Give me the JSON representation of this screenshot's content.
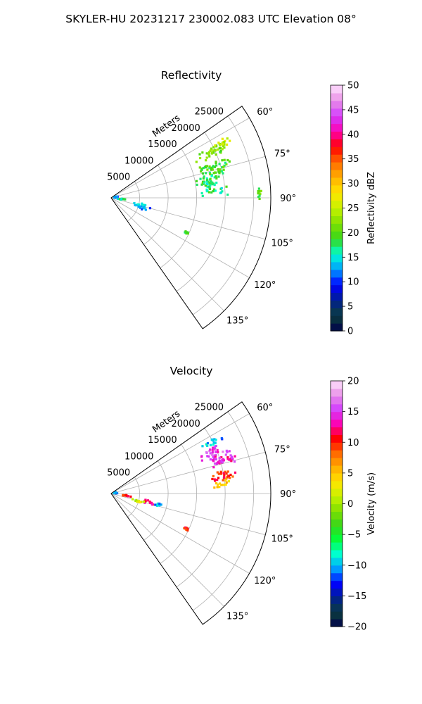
{
  "suptitle": "SKYLER-HU  20231217  230002.083 UTC Elevation 08°",
  "chart_data": [
    {
      "type": "heatmap",
      "projection": "polar-sector",
      "title": "Reflectivity",
      "range_label": "Meters",
      "range_ticks": [
        5000,
        10000,
        15000,
        20000,
        25000
      ],
      "range_max": 28000,
      "azimuth_range": [
        55,
        145
      ],
      "azimuth_ticks": [
        "60°",
        "75°",
        "90°",
        "105°",
        "120°",
        "135°"
      ],
      "colorbar": {
        "label": "Reflectivity dBZ",
        "min": 0,
        "max": 50,
        "ticks": [
          "0",
          "5",
          "10",
          "15",
          "20",
          "25",
          "30",
          "35",
          "40",
          "45",
          "50"
        ],
        "stops": [
          "#00004a",
          "#0b3d3d",
          "#00208f",
          "#0000ff",
          "#009cff",
          "#00ffd5",
          "#37d61a",
          "#7fe000",
          "#c6f200",
          "#ffe600",
          "#ffb000",
          "#ff6a00",
          "#ff0000",
          "#ff00b0",
          "#d23cff",
          "#e98fe6",
          "#ffe3ff"
        ]
      },
      "echoes": [
        {
          "az": 66,
          "r": 19500,
          "daz": 4.5,
          "dr": 3500,
          "value": 21
        },
        {
          "az": 64,
          "r": 22000,
          "daz": 3,
          "dr": 2000,
          "value": 25
        },
        {
          "az": 74,
          "r": 19000,
          "daz": 6,
          "dr": 4000,
          "value": 19
        },
        {
          "az": 80,
          "r": 17500,
          "daz": 5,
          "dr": 3500,
          "value": 18
        },
        {
          "az": 85,
          "r": 18000,
          "daz": 4,
          "dr": 3000,
          "value": 17
        },
        {
          "az": 103,
          "r": 5000,
          "daz": 6,
          "dr": 2200,
          "value": 14
        },
        {
          "az": 108,
          "r": 5500,
          "daz": 5,
          "dr": 1800,
          "value": 13
        },
        {
          "az": 97,
          "r": 2000,
          "daz": 4,
          "dr": 1300,
          "value": 17
        },
        {
          "az": 80,
          "r": 800,
          "daz": 14,
          "dr": 500,
          "value": 12
        },
        {
          "az": 88,
          "r": 26000,
          "daz": 3,
          "dr": 500,
          "value": 20
        },
        {
          "az": 115,
          "r": 14500,
          "daz": 1,
          "dr": 600,
          "value": 18
        }
      ]
    },
    {
      "type": "heatmap",
      "projection": "polar-sector",
      "title": "Velocity",
      "range_label": "Meters",
      "range_ticks": [
        5000,
        10000,
        15000,
        20000,
        25000
      ],
      "range_max": 28000,
      "azimuth_range": [
        55,
        145
      ],
      "azimuth_ticks": [
        "60°",
        "75°",
        "90°",
        "105°",
        "120°",
        "135°"
      ],
      "colorbar": {
        "label": "Velocity (m/s)",
        "min": -20,
        "max": 20,
        "ticks": [
          "−20",
          "−15",
          "−10",
          "−5",
          "0",
          "5",
          "10",
          "15",
          "20"
        ],
        "stops": [
          "#00004a",
          "#0b3d3d",
          "#00208f",
          "#0000ff",
          "#009cff",
          "#00ffd5",
          "#00ff3c",
          "#37d61a",
          "#7fe000",
          "#c6f200",
          "#ffe600",
          "#ffb000",
          "#ff6a00",
          "#ff0000",
          "#ff00b0",
          "#d23cff",
          "#e98fe6",
          "#ffe3ff"
        ]
      },
      "echoes": [
        {
          "az": 63,
          "r": 20000,
          "daz": 3,
          "dr": 2500,
          "value": -10
        },
        {
          "az": 68,
          "r": 19000,
          "daz": 4,
          "dr": 3000,
          "value": 15
        },
        {
          "az": 73,
          "r": 20500,
          "daz": 5,
          "dr": 3500,
          "value": 14
        },
        {
          "az": 81,
          "r": 20000,
          "daz": 4,
          "dr": 3000,
          "value": 10
        },
        {
          "az": 85,
          "r": 19500,
          "daz": 3,
          "dr": 2200,
          "value": 5
        },
        {
          "az": 103,
          "r": 6500,
          "daz": 4,
          "dr": 1800,
          "value": 12
        },
        {
          "az": 106,
          "r": 5000,
          "daz": 4,
          "dr": 1500,
          "value": 2
        },
        {
          "az": 103,
          "r": 8500,
          "daz": 3,
          "dr": 1200,
          "value": -10
        },
        {
          "az": 97,
          "r": 2500,
          "daz": 4,
          "dr": 1500,
          "value": 10
        },
        {
          "az": 80,
          "r": 800,
          "daz": 14,
          "dr": 500,
          "value": -12
        },
        {
          "az": 115,
          "r": 14500,
          "daz": 1,
          "dr": 600,
          "value": 10
        }
      ]
    }
  ]
}
